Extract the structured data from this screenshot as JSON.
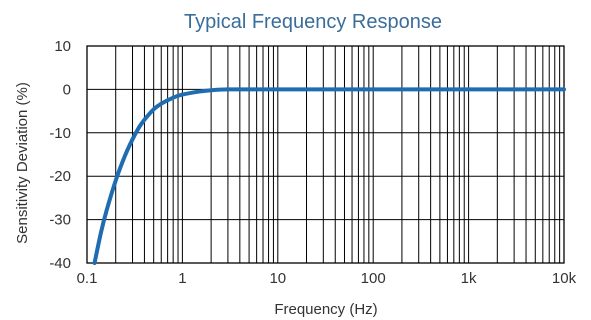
{
  "chart_data": {
    "type": "line",
    "title": "Typical Frequency Response",
    "xlabel": "Frequency (Hz)",
    "ylabel": "Sensitivity Deviation (%)",
    "x_scale": "log",
    "xlim": [
      0.1,
      10000
    ],
    "ylim": [
      -40,
      10
    ],
    "grid": true,
    "x_ticks": [
      {
        "value": 0.1,
        "label": "0.1"
      },
      {
        "value": 1,
        "label": "1"
      },
      {
        "value": 10,
        "label": "10"
      },
      {
        "value": 100,
        "label": "100"
      },
      {
        "value": 1000,
        "label": "1k"
      },
      {
        "value": 10000,
        "label": "10k"
      }
    ],
    "y_ticks": [
      {
        "value": 10,
        "label": "10"
      },
      {
        "value": 0,
        "label": "0"
      },
      {
        "value": -10,
        "label": "-10"
      },
      {
        "value": -20,
        "label": "-20"
      },
      {
        "value": -30,
        "label": "-30"
      },
      {
        "value": -40,
        "label": "-40"
      }
    ],
    "series": [
      {
        "x": [
          0.12,
          0.14,
          0.16,
          0.2,
          0.25,
          0.3,
          0.35,
          0.4,
          0.5,
          0.6,
          0.8,
          1,
          1.5,
          2,
          3,
          5,
          10,
          100,
          1000,
          10000
        ],
        "y": [
          -40,
          -33,
          -28,
          -21,
          -15.3,
          -11.5,
          -8.8,
          -7,
          -4.6,
          -3.3,
          -1.9,
          -1.2,
          -0.5,
          -0.2,
          0,
          0,
          0,
          0,
          0,
          0
        ]
      }
    ]
  },
  "colors": {
    "title": "#3a6d99",
    "text": "#333333",
    "grid": "#000000",
    "line": "#1f6db0"
  }
}
